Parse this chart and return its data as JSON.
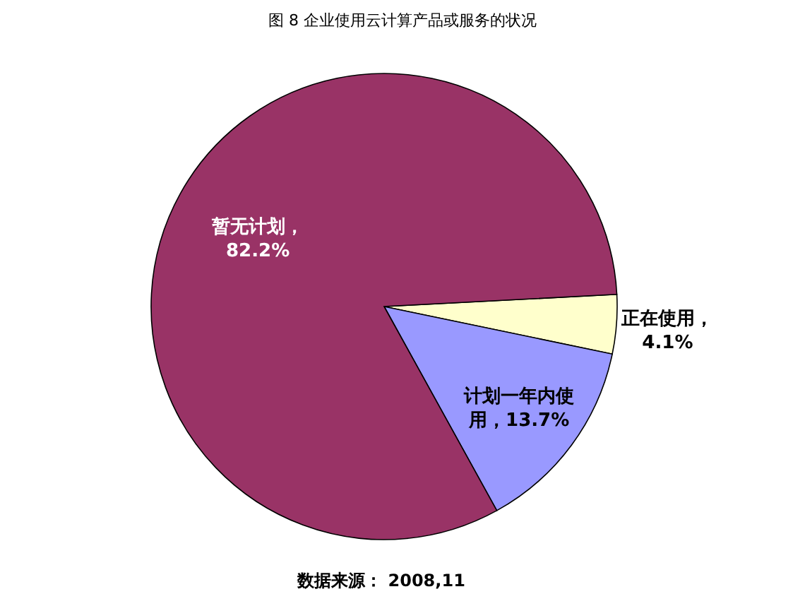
{
  "chart_data": {
    "type": "pie",
    "title": "图 8   企业使用云计算产品或服务的状况",
    "categories": [
      "正在使用",
      "计划一年内使用",
      "暂无计划"
    ],
    "values": [
      4.1,
      13.7,
      82.2
    ],
    "colors": [
      "#ffffcc",
      "#9999ff",
      "#993366"
    ],
    "value_labels": [
      "，4.1%",
      "，13.7%",
      "，82.2%"
    ],
    "annotations": [
      "数据来源：  2008,11"
    ]
  }
}
